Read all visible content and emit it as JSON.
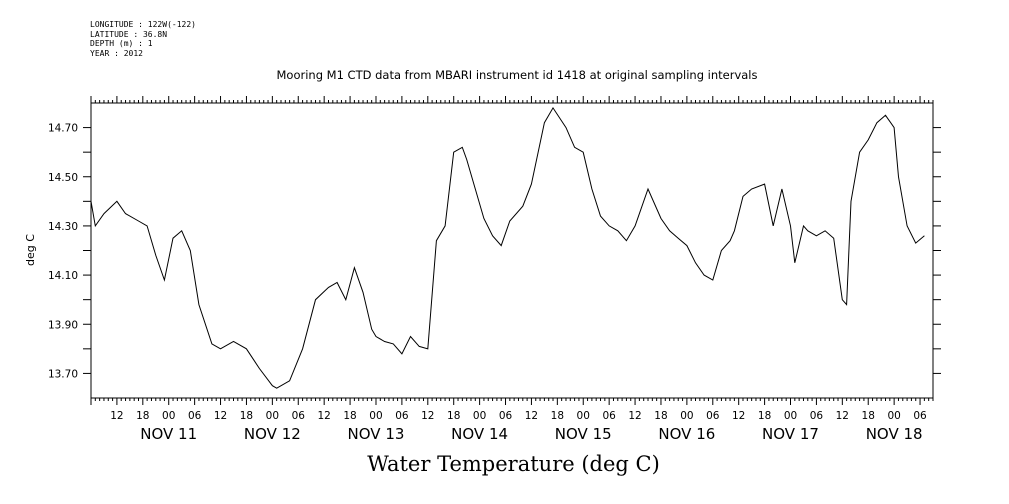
{
  "meta": {
    "longitude": "LONGITUDE : 122W(-122)",
    "latitude": "LATITUDE : 36.8N",
    "depth": "DEPTH (m) : 1",
    "year": "YEAR : 2012"
  },
  "chart_data": {
    "type": "line",
    "title": "Mooring M1 CTD data from MBARI instrument id 1418 at original sampling intervals",
    "xlabel": "Water Temperature (deg C)",
    "ylabel": "deg C",
    "xlim": [
      "2012-11-10T06:00",
      "2012-11-18T09:00"
    ],
    "ylim": [
      13.6,
      14.8
    ],
    "yticks": [
      "13.70",
      "13.90",
      "14.10",
      "14.30",
      "14.50",
      "14.70"
    ],
    "hour_ticks": [
      "12",
      "18",
      "00",
      "06",
      "12",
      "18",
      "00",
      "06",
      "12",
      "18",
      "00",
      "06",
      "12",
      "18",
      "00",
      "06",
      "12",
      "18",
      "00",
      "06",
      "12",
      "18",
      "00",
      "06",
      "12",
      "18",
      "00",
      "06",
      "12",
      "18",
      "00",
      "06"
    ],
    "day_labels": [
      "NOV 11",
      "NOV 12",
      "NOV 13",
      "NOV 14",
      "NOV 15",
      "NOV 16",
      "NOV 17",
      "NOV 18"
    ],
    "series": [
      {
        "line_color": "#000000",
        "x": [
          "2012-11-10T06:00",
          "2012-11-10T07:00",
          "2012-11-10T09:00",
          "2012-11-10T12:00",
          "2012-11-10T14:00",
          "2012-11-10T17:00",
          "2012-11-10T19:00",
          "2012-11-10T21:00",
          "2012-11-10T23:00",
          "2012-11-11T01:00",
          "2012-11-11T03:00",
          "2012-11-11T05:00",
          "2012-11-11T07:00",
          "2012-11-11T10:00",
          "2012-11-11T12:00",
          "2012-11-11T15:00",
          "2012-11-11T18:00",
          "2012-11-11T21:00",
          "2012-11-12T00:00",
          "2012-11-12T01:00",
          "2012-11-12T04:00",
          "2012-11-12T07:00",
          "2012-11-12T10:00",
          "2012-11-12T13:00",
          "2012-11-12T15:00",
          "2012-11-12T17:00",
          "2012-11-12T19:00",
          "2012-11-12T21:00",
          "2012-11-12T23:00",
          "2012-11-13T00:00",
          "2012-11-13T02:00",
          "2012-11-13T04:00",
          "2012-11-13T06:00",
          "2012-11-13T08:00",
          "2012-11-13T10:00",
          "2012-11-13T12:00",
          "2012-11-13T14:00",
          "2012-11-13T16:00",
          "2012-11-13T18:00",
          "2012-11-13T20:00",
          "2012-11-13T21:00",
          "2012-11-13T23:00",
          "2012-11-14T01:00",
          "2012-11-14T03:00",
          "2012-11-14T05:00",
          "2012-11-14T07:00",
          "2012-11-14T10:00",
          "2012-11-14T12:00",
          "2012-11-14T15:00",
          "2012-11-14T17:00",
          "2012-11-14T20:00",
          "2012-11-14T22:00",
          "2012-11-15T00:00",
          "2012-11-15T02:00",
          "2012-11-15T04:00",
          "2012-11-15T06:00",
          "2012-11-15T08:00",
          "2012-11-15T10:00",
          "2012-11-15T12:00",
          "2012-11-15T15:00",
          "2012-11-15T18:00",
          "2012-11-15T20:00",
          "2012-11-15T22:00",
          "2012-11-16T00:00",
          "2012-11-16T02:00",
          "2012-11-16T04:00",
          "2012-11-16T06:00",
          "2012-11-16T08:00",
          "2012-11-16T10:00",
          "2012-11-16T11:00",
          "2012-11-16T13:00",
          "2012-11-16T15:00",
          "2012-11-16T18:00",
          "2012-11-16T20:00",
          "2012-11-16T22:00",
          "2012-11-17T00:00",
          "2012-11-17T01:00",
          "2012-11-17T03:00",
          "2012-11-17T04:00",
          "2012-11-17T06:00",
          "2012-11-17T08:00",
          "2012-11-17T10:00",
          "2012-11-17T12:00",
          "2012-11-17T13:00",
          "2012-11-17T14:00",
          "2012-11-17T16:00",
          "2012-11-17T18:00",
          "2012-11-17T20:00",
          "2012-11-17T22:00",
          "2012-11-18T00:00",
          "2012-11-18T01:00",
          "2012-11-18T03:00",
          "2012-11-18T05:00",
          "2012-11-18T07:00"
        ],
        "y": [
          14.4,
          14.3,
          14.35,
          14.4,
          14.35,
          14.32,
          14.3,
          14.18,
          14.08,
          14.25,
          14.28,
          14.2,
          13.98,
          13.82,
          13.8,
          13.83,
          13.8,
          13.72,
          13.65,
          13.64,
          13.67,
          13.8,
          14.0,
          14.05,
          14.07,
          14.0,
          14.13,
          14.03,
          13.88,
          13.85,
          13.83,
          13.82,
          13.78,
          13.85,
          13.81,
          13.8,
          14.24,
          14.3,
          14.6,
          14.62,
          14.57,
          14.45,
          14.33,
          14.26,
          14.22,
          14.32,
          14.38,
          14.47,
          14.72,
          14.78,
          14.7,
          14.62,
          14.6,
          14.45,
          14.34,
          14.3,
          14.28,
          14.24,
          14.3,
          14.45,
          14.33,
          14.28,
          14.25,
          14.22,
          14.15,
          14.1,
          14.08,
          14.2,
          14.24,
          14.28,
          14.42,
          14.45,
          14.47,
          14.3,
          14.45,
          14.3,
          14.15,
          14.3,
          14.28,
          14.26,
          14.28,
          14.25,
          14.0,
          13.98,
          14.4,
          14.6,
          14.65,
          14.72,
          14.75,
          14.7,
          14.5,
          14.3,
          14.23,
          14.26
        ]
      }
    ]
  }
}
